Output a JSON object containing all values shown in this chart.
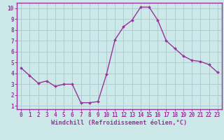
{
  "x": [
    0,
    1,
    2,
    3,
    4,
    5,
    6,
    7,
    8,
    9,
    10,
    11,
    12,
    13,
    14,
    15,
    16,
    17,
    18,
    19,
    20,
    21,
    22,
    23
  ],
  "y": [
    4.5,
    3.8,
    3.1,
    3.3,
    2.8,
    3.0,
    3.0,
    1.3,
    1.3,
    1.4,
    3.9,
    7.1,
    8.3,
    8.9,
    10.1,
    10.1,
    8.9,
    7.0,
    6.3,
    5.6,
    5.2,
    5.1,
    4.8,
    4.1
  ],
  "line_color": "#993399",
  "marker": "D",
  "marker_size": 2.0,
  "linewidth": 1.0,
  "bg_color": "#cce8e8",
  "grid_color": "#aac8cc",
  "xlabel": "Windchill (Refroidissement éolien,°C)",
  "xlabel_color": "#993399",
  "tick_color": "#993399",
  "ylabel_ticks": [
    1,
    2,
    3,
    4,
    5,
    6,
    7,
    8,
    9,
    10
  ],
  "xlim": [
    -0.5,
    23.5
  ],
  "ylim": [
    0.7,
    10.5
  ],
  "axis_line_color": "#993399",
  "tick_fontsize": 5.5,
  "xlabel_fontsize": 6.2
}
